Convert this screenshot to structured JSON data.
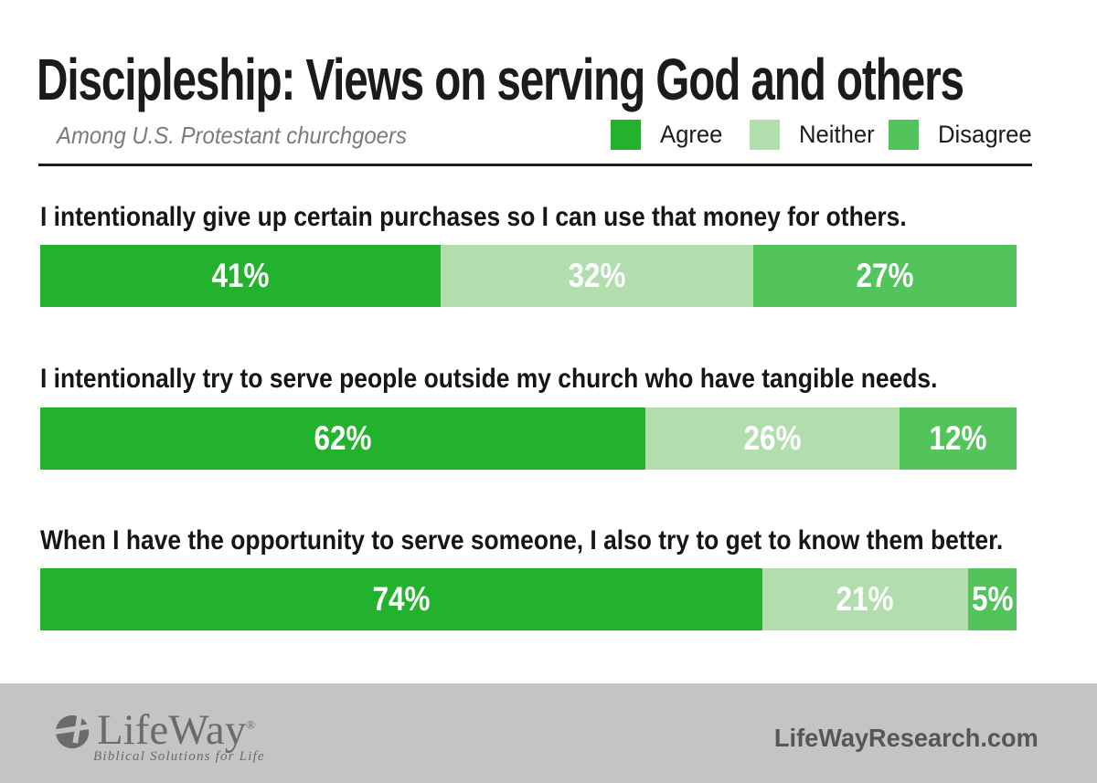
{
  "header": {
    "title": "Discipleship: Views on serving God and others",
    "subtitle": "Among U.S. Protestant churchgoers"
  },
  "legend": {
    "items": [
      {
        "label": "Agree",
        "color": "#23B22D"
      },
      {
        "label": "Neither",
        "color": "#B2DEAD"
      },
      {
        "label": "Disagree",
        "color": "#53C35B"
      }
    ]
  },
  "chart_data": {
    "type": "bar",
    "orientation": "horizontal-stacked",
    "unit": "%",
    "title": "Discipleship: Views on serving God and others",
    "subtitle": "Among U.S. Protestant churchgoers",
    "categories": [
      "I intentionally give up certain purchases so I can use that money for others.",
      "I intentionally try to serve people outside my church who have tangible needs.",
      "When I have the opportunity to serve someone, I also try to get to know them better."
    ],
    "series": [
      {
        "name": "Agree",
        "color": "#23B22D",
        "values": [
          41,
          62,
          74
        ]
      },
      {
        "name": "Neither",
        "color": "#B2DEAD",
        "values": [
          32,
          26,
          21
        ]
      },
      {
        "name": "Disagree",
        "color": "#53C35B",
        "values": [
          27,
          12,
          5
        ]
      }
    ],
    "xlim": [
      0,
      100
    ],
    "grid": false,
    "legend_position": "top-right",
    "value_label_style": "white, bold, centered inside segment, percent suffix"
  },
  "colors": {
    "background": "#ffffff",
    "text": "#1b1b1b",
    "subtitle_gray": "#7b7b7b",
    "rule_black": "#1b1b1b",
    "footer_gray": "#C4C4C4",
    "footer_text_gray": "#6b6b6c",
    "site_text_gray": "#55565A"
  },
  "footer": {
    "brand": "LifeWay",
    "brand_reg": "®",
    "tagline": "Biblical Solutions for Life",
    "site": "LifeWayResearch.com"
  }
}
